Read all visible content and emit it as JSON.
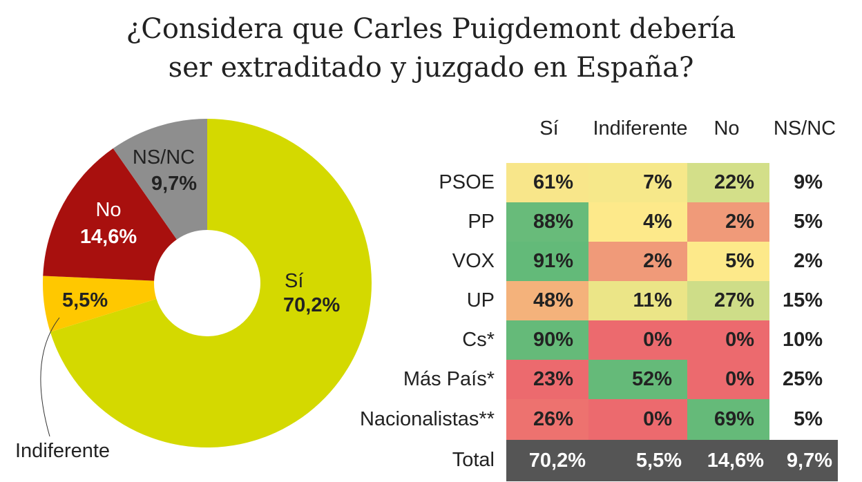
{
  "title_lines": [
    "¿Considera que Carles Puigdemont debería",
    "ser extraditado y juzgado en España?"
  ],
  "chart_data": [
    {
      "type": "pie",
      "donut": true,
      "slices": [
        {
          "label": "Sí",
          "value": 70.2,
          "value_label": "70,2%",
          "color": "#d4d900"
        },
        {
          "label": "Indiferente",
          "value": 5.5,
          "value_label": "5,5%",
          "color": "#ffc800"
        },
        {
          "label": "No",
          "value": 14.6,
          "value_label": "14,6%",
          "color": "#a8100e"
        },
        {
          "label": "NS/NC",
          "value": 9.7,
          "value_label": "9,7%",
          "color": "#8e8e8e"
        }
      ]
    },
    {
      "type": "heatmap",
      "columns": [
        "Sí",
        "Indiferente",
        "No",
        "NS/NC"
      ],
      "rows": [
        {
          "label": "PSOE",
          "values": [
            "61%",
            "7%",
            "22%",
            "9%"
          ],
          "colors": [
            "#f8e68a",
            "#f6e88a",
            "#d3df89",
            null
          ]
        },
        {
          "label": "PP",
          "values": [
            "88%",
            "4%",
            "2%",
            "5%"
          ],
          "colors": [
            "#68bb7a",
            "#fde98a",
            "#f09a79",
            null
          ]
        },
        {
          "label": "VOX",
          "values": [
            "91%",
            "2%",
            "5%",
            "2%"
          ],
          "colors": [
            "#63ba79",
            "#f09a79",
            "#fde98a",
            null
          ]
        },
        {
          "label": "UP",
          "values": [
            "48%",
            "11%",
            "27%",
            "15%"
          ],
          "colors": [
            "#f4b27b",
            "#ebe587",
            "#cedd88",
            null
          ]
        },
        {
          "label": "Cs*",
          "values": [
            "90%",
            "0%",
            "0%",
            "10%"
          ],
          "colors": [
            "#65ba79",
            "#ec6a6e",
            "#ec6a6e",
            null
          ]
        },
        {
          "label": "Más País*",
          "values": [
            "23%",
            "52%",
            "0%",
            "25%"
          ],
          "colors": [
            "#ec6a6e",
            "#65ba79",
            "#ec6a6e",
            null
          ]
        },
        {
          "label": "Nacionalistas**",
          "values": [
            "26%",
            "0%",
            "69%",
            "5%"
          ],
          "colors": [
            "#ed726f",
            "#ec6a6e",
            "#65ba79",
            null
          ]
        }
      ],
      "total": {
        "label": "Total",
        "values": [
          "70,2%",
          "5,5%",
          "14,6%",
          "9,7%"
        ],
        "color": "#555555"
      }
    }
  ]
}
